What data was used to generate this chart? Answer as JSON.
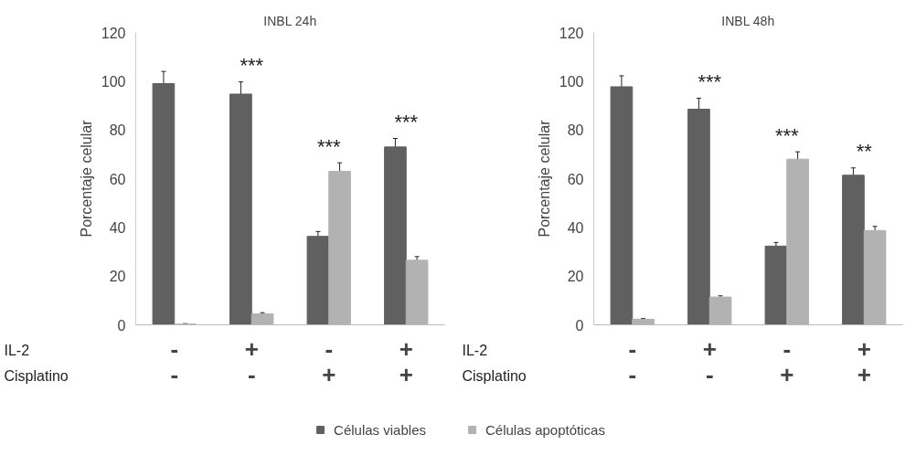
{
  "chart_data": [
    {
      "type": "bar",
      "title": "INBL 24h",
      "ylabel": "Porcentaje celular",
      "categories": [
        "-\n-",
        "+\n-",
        "-\n+",
        "+\n+"
      ],
      "series": [
        {
          "name": "Células viables",
          "color": "#606060",
          "values": [
            99,
            94.7,
            36.3,
            73
          ],
          "errors": [
            5,
            5,
            2,
            3.5
          ]
        },
        {
          "name": "Células apoptóticas",
          "color": "#b2b2b2",
          "values": [
            0.3,
            4.5,
            63,
            26.5
          ],
          "errors": [
            0.2,
            0.5,
            3.5,
            1.5
          ]
        }
      ],
      "ylim": [
        0,
        120
      ],
      "yticks": [
        0,
        20,
        40,
        60,
        80,
        100,
        120
      ],
      "grid": false,
      "legend": "bottom",
      "annotations": [
        "IL-2",
        "Cisplatino",
        "***",
        "***",
        "***"
      ]
    },
    {
      "type": "bar",
      "title": "INBL 48h",
      "ylabel": "Porcentaje celular",
      "categories": [
        "-\n-",
        "+\n-",
        "-\n+",
        "+\n+"
      ],
      "series": [
        {
          "color": "#606060",
          "values": [
            97.7,
            88.5,
            32.3,
            61.4
          ],
          "errors": [
            4.5,
            4.5,
            1.5,
            3
          ]
        },
        {
          "color": "#b2b2b2",
          "values": [
            2.3,
            11.4,
            68,
            38.7
          ],
          "errors": [
            0.3,
            0.5,
            3,
            1.7
          ]
        }
      ],
      "ylim": [
        0,
        120
      ],
      "yticks": [
        0,
        20,
        40,
        60,
        80,
        100,
        120
      ],
      "grid": false,
      "legend": false,
      "annotations": [
        "IL-2",
        "Cisplatino",
        "***",
        "***",
        "**"
      ]
    }
  ]
}
